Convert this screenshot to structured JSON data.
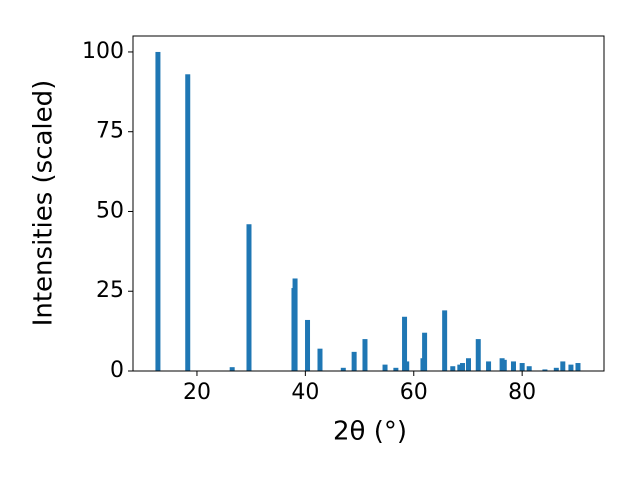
{
  "chart_data": {
    "type": "bar",
    "x_label": "2θ (°)",
    "y_label": "Intensities (scaled)",
    "x": [
      12.8,
      18.3,
      26.5,
      29.6,
      37.9,
      38.1,
      40.4,
      42.7,
      47.0,
      49.0,
      51.0,
      54.7,
      56.7,
      58.3,
      58.7,
      61.7,
      62.0,
      65.7,
      67.2,
      68.5,
      69.0,
      70.1,
      71.9,
      73.8,
      76.3,
      76.7,
      78.4,
      80.0,
      81.3,
      84.2,
      86.3,
      87.5,
      89.0,
      90.3
    ],
    "values": [
      100,
      93,
      1.2,
      46,
      26,
      29,
      16,
      7,
      1,
      6,
      10,
      2,
      1,
      17,
      3,
      4,
      12,
      19,
      1.5,
      2,
      2.5,
      4,
      10,
      3,
      4,
      3.5,
      3,
      2.5,
      1.5,
      0.5,
      1,
      3,
      2,
      2.5
    ],
    "color": "#1f77b4",
    "xlim": [
      8.2,
      95.1
    ],
    "xticks": [
      20,
      40,
      60,
      80
    ],
    "ylim": [
      0,
      105
    ],
    "yticks": [
      0,
      25,
      50,
      75,
      100
    ]
  }
}
